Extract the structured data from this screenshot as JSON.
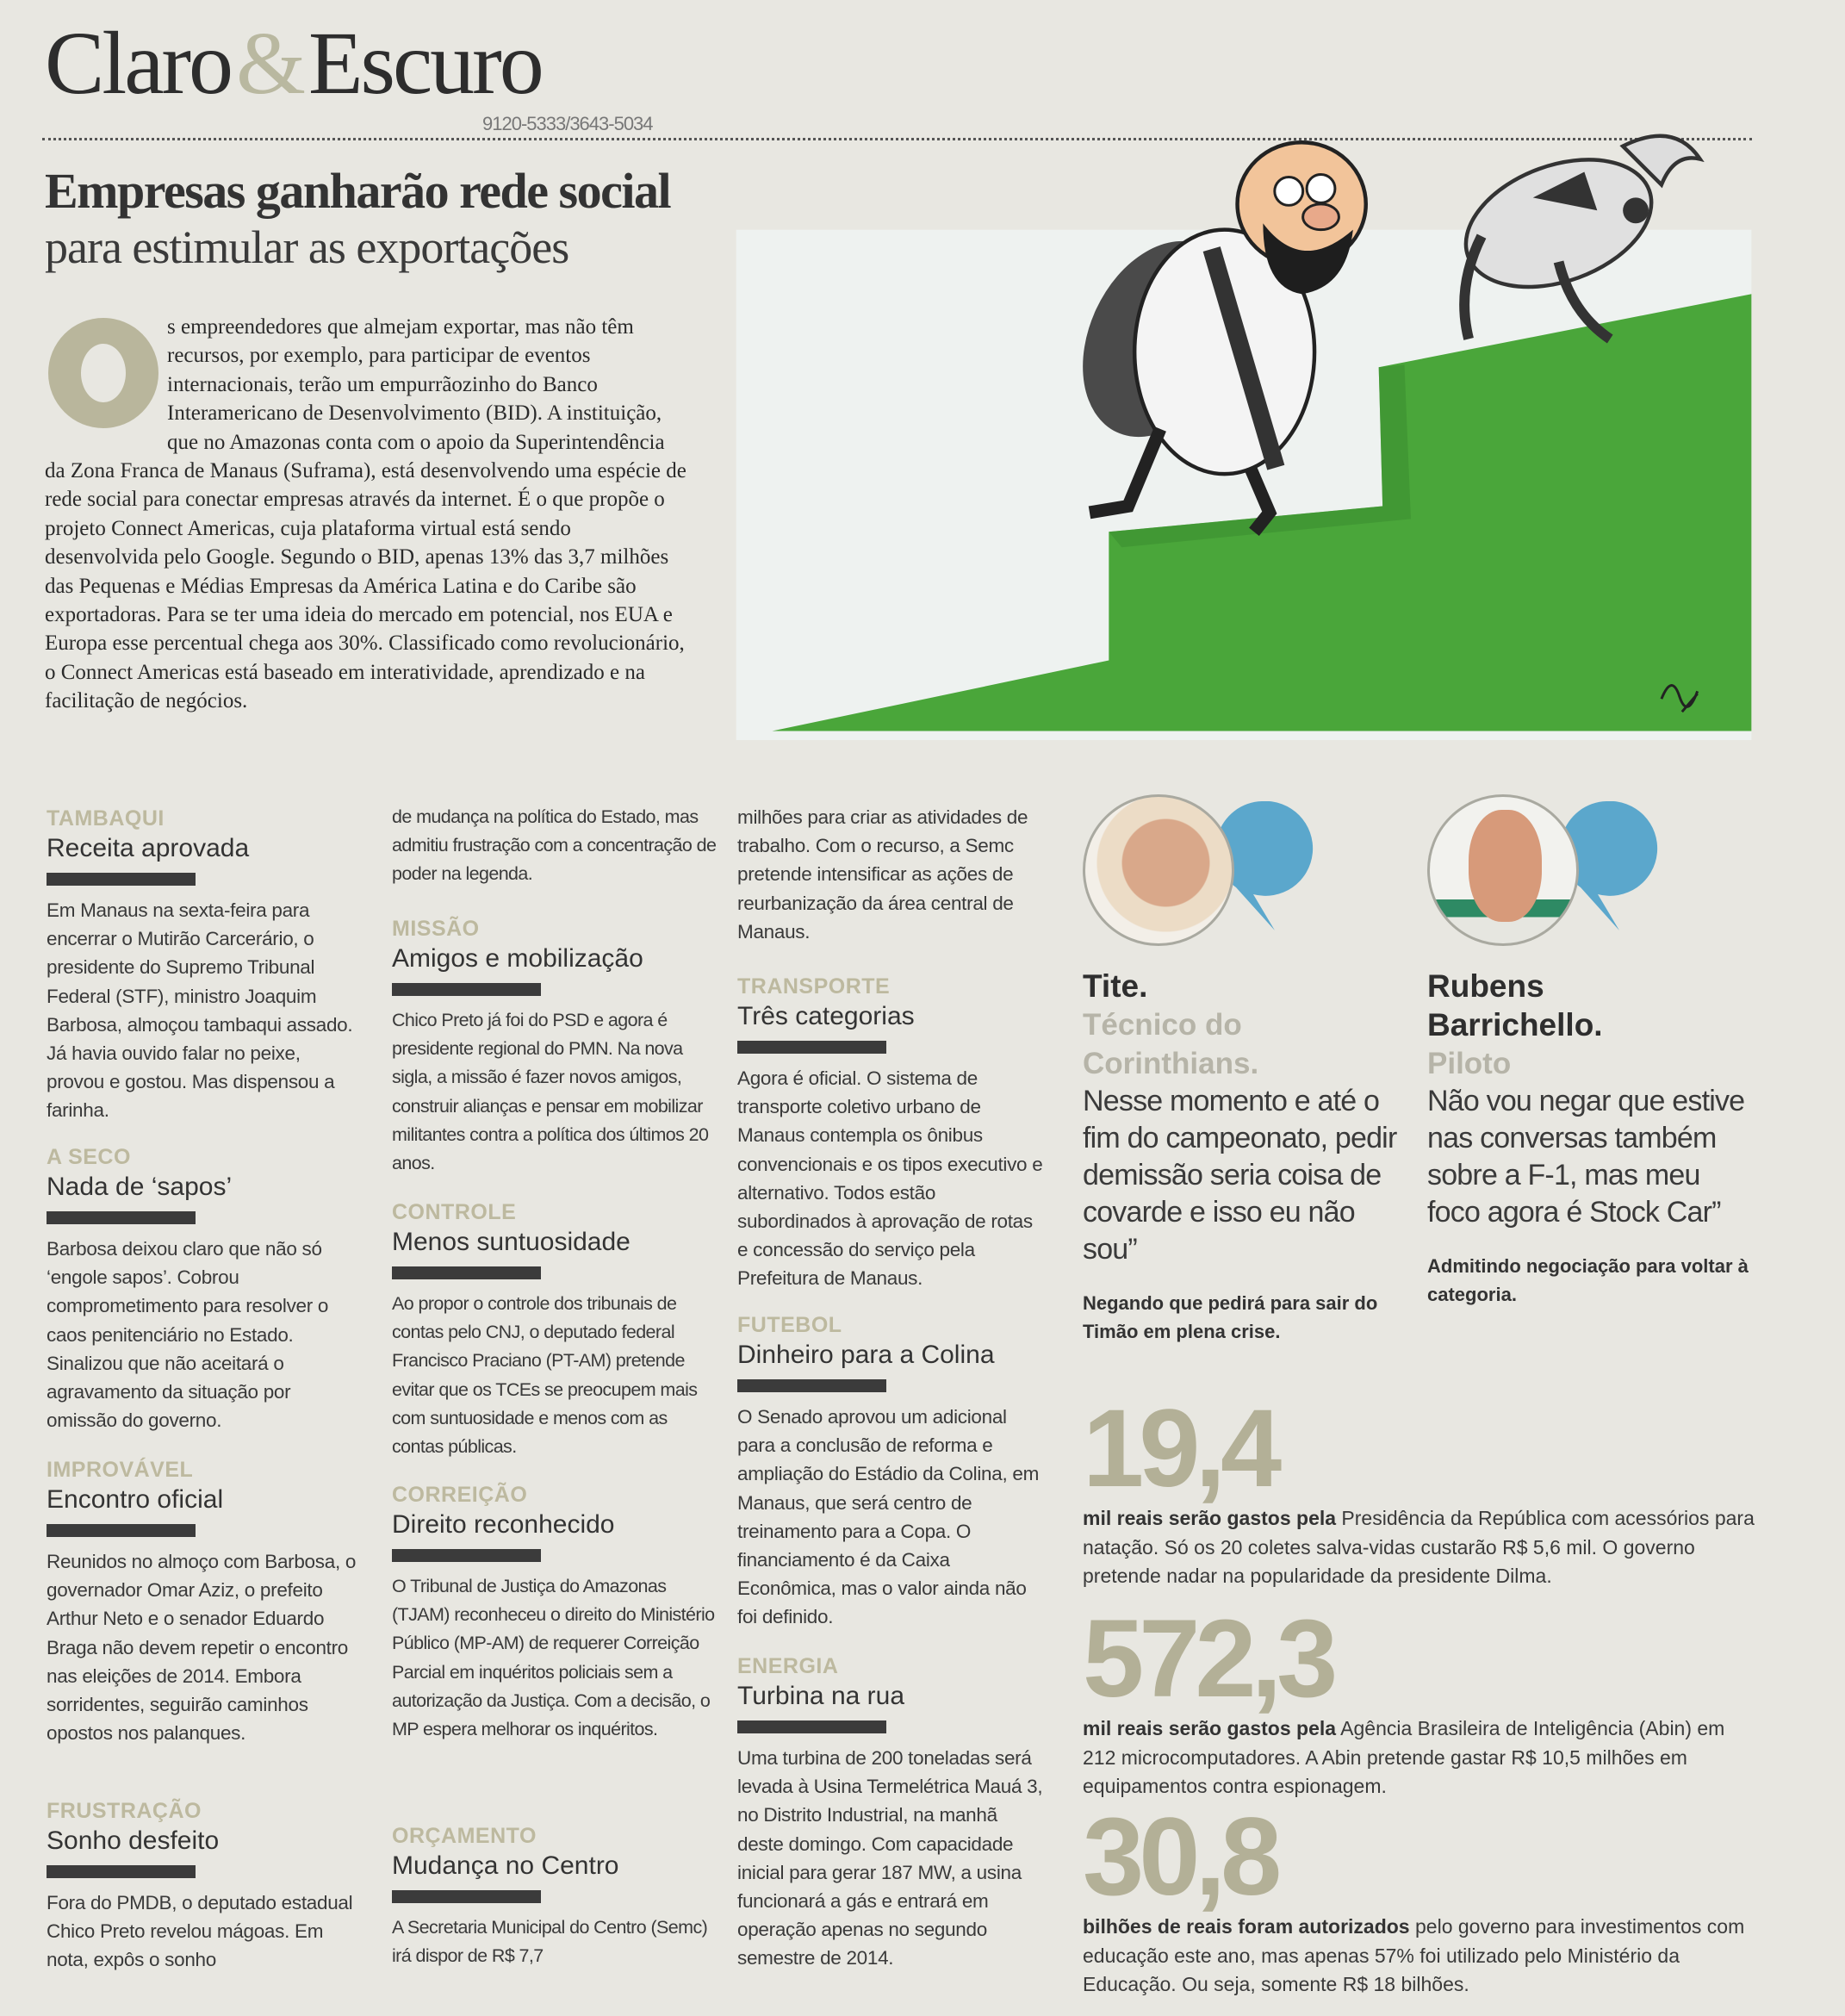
{
  "masthead": {
    "left": "Claro",
    "amp": "&",
    "right": "Escuro",
    "phone": "9120-5333/3643-5034"
  },
  "article": {
    "headline": "Empresas ganharão rede social",
    "subheadline": "para estimular as exportações",
    "dropcap": "O",
    "body": "s empreendedores que almejam exportar, mas não têm recursos, por exemplo, para participar de eventos internacionais, terão um empurrãozinho do Banco Interamericano de Desenvolvimento (BID). A instituição, que no Amazonas conta com o apoio da Superintendência da Zona Franca de Manaus (Suframa), está desenvolvendo uma espécie de rede social para conectar empresas através da internet. É o que propõe o projeto Connect Americas, cuja plataforma virtual está sendo desenvolvida pelo Google. Segundo o BID, apenas 13% das 3,7 milhões das Pequenas e Médias Empresas da América Latina e do Caribe são exportadoras. Para se ter uma ideia do mercado em potencial, nos EUA e Europa esse percentual chega aos 30%. Classificado como revolucionário, o Connect Americas está baseado em interatividade, aprendizado e na facilitação de negócios."
  },
  "cartoon": {
    "signature": "Jorge Lira",
    "colors": {
      "grass": "#4aa63a",
      "sky": "#eef2f0"
    }
  },
  "notes": [
    {
      "kicker": "TAMBAQUI",
      "title": "Receita aprovada",
      "text": "Em Manaus na sexta-feira para encerrar o Mutirão Carcerário, o presidente do Supremo Tribunal Federal (STF), ministro Joaquim Barbosa, almoçou tambaqui assado. Já havia ouvido falar no peixe, provou e gostou. Mas dispensou a farinha."
    },
    {
      "kicker": "A SECO",
      "title": "Nada de ‘sapos’",
      "text": "Barbosa deixou claro que não só ‘engole sapos’. Cobrou comprometimento para resolver o caos penitenciário no Estado. Sinalizou que não aceitará o agravamento da situação por omissão do governo."
    },
    {
      "kicker": "IMPROVÁVEL",
      "title": "Encontro oficial",
      "text": "Reunidos no almoço com Barbosa, o governador Omar Aziz, o prefeito Arthur Neto e o senador Eduardo Braga não devem repetir o encontro nas eleições de 2014. Embora sorridentes, seguirão caminhos opostos nos palanques."
    },
    {
      "kicker": "FRUSTRAÇÃO",
      "title": "Sonho desfeito",
      "text": "Fora do PMDB, o deputado estadual Chico Preto revelou mágoas. Em nota, expôs o sonho",
      "continuation": "de mudança na política do Estado, mas admitiu frustração com a concentração de poder na legenda."
    },
    {
      "kicker": "MISSÃO",
      "title": "Amigos e mobilização",
      "text": "Chico Preto já foi do PSD e agora é presidente regional do PMN. Na nova sigla, a missão é fazer novos amigos, construir alianças e pensar em mobilizar militantes contra a política dos últimos 20 anos."
    },
    {
      "kicker": "CONTROLE",
      "title": "Menos suntuosidade",
      "text": "Ao propor o controle dos tribunais de contas pelo CNJ, o deputado federal Francisco Praciano (PT-AM) pretende evitar que os TCEs se preocupem mais com suntuosidade e menos com as contas públicas."
    },
    {
      "kicker": "CORREIÇÃO",
      "title": "Direito reconhecido",
      "text": "O Tribunal de Justiça do Amazonas (TJAM) reconheceu o direito do Ministério Público (MP-AM) de requerer Correição Parcial em inquéritos policiais sem a autorização da Justiça. Com a decisão, o MP espera melhorar os inquéritos."
    },
    {
      "kicker": "ORÇAMENTO",
      "title": "Mudança no Centro",
      "text": "A Secretaria Municipal do Centro (Semc) irá dispor de R$ 7,7",
      "continuation": "milhões para criar as atividades de trabalho. Com o recurso, a Semc pretende intensificar as ações de reurbanização da área central de Manaus."
    },
    {
      "kicker": "TRANSPORTE",
      "title": "Três categorias",
      "text": "Agora é oficial. O sistema de transporte coletivo urbano de Manaus contempla os ônibus convencionais e os tipos executivo e alternativo. Todos estão subordinados à aprovação de rotas e concessão do serviço pela Prefeitura de Manaus."
    },
    {
      "kicker": "FUTEBOL",
      "title": "Dinheiro para a Colina",
      "text": "O Senado aprovou um adicional para a conclusão de reforma e ampliação do Estádio da Colina, em Manaus, que será centro de treinamento para a Copa. O financiamento é da Caixa Econômica, mas o valor ainda não foi definido."
    },
    {
      "kicker": "ENERGIA",
      "title": "Turbina na rua",
      "text": "Uma turbina de 200 toneladas será levada à Usina Termelétrica Mauá 3, no Distrito Industrial, na manhã deste domingo. Com capacidade inicial para gerar 187 MW, a usina funcionará a gás e entrará em operação apenas no segundo semestre de 2014."
    }
  ],
  "quotes": [
    {
      "name": "Tite.",
      "role": "Técnico do Corinthians.",
      "quote": "Nesse momento e até o fim do campeonato, pedir demissão seria coisa de covarde e isso eu não sou”",
      "caption": "Negando que pedirá para sair do Timão em plena crise."
    },
    {
      "name": "Rubens Barrichello.",
      "role": "Piloto",
      "quote": "Não vou negar que estive nas conversas também sobre a F-1, mas meu foco agora é Stock Car”",
      "caption": "Admitindo negociação para voltar à categoria."
    }
  ],
  "stats": [
    {
      "number": "19,4",
      "lead": "mil reais serão gastos pela",
      "text": " Presidência da República com acessórios para natação. Só os 20 coletes salva-vidas custarão R$ 5,6 mil. O governo pretende nadar na popularidade da presidente Dilma."
    },
    {
      "number": "572,3",
      "lead": "mil reais serão gastos pela",
      "text": " Agência Brasileira de Inteligência (Abin) em 212 microcomputadores. A Abin pretende gastar R$ 10,5 milhões em equipamentos contra espionagem."
    },
    {
      "number": "30,8",
      "lead": "bilhões de reais foram autorizados",
      "text": " pelo governo para investimentos com educação este ano, mas apenas 57% foi utilizado pelo Ministério da Educação. Ou seja, somente R$ 18 bilhões."
    }
  ],
  "colors": {
    "kicker": "#bdb99f",
    "bubble": "#5ba7cc",
    "stat_number": "#b3b097",
    "paper": "#e8e7e1"
  }
}
